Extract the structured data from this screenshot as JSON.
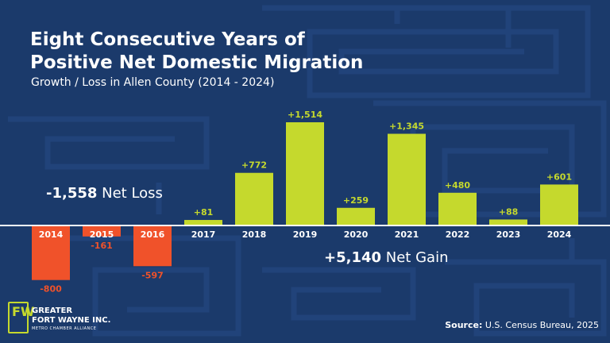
{
  "title_line1": "Eight Consecutive Years of",
  "title_line2": "Positive Net Domestic Migration",
  "subtitle": "Growth / Loss in Allen County (2014 - 2024)",
  "loss_note": {
    "value": "-1,558",
    "label": "Net Loss"
  },
  "gain_note": {
    "value": "+5,140",
    "label": "Net Gain"
  },
  "logo": {
    "line1": "GREATER",
    "line2": "FORT WAYNE INC.",
    "line3": "METRO CHAMBER ALLIANCE",
    "mark": "FW"
  },
  "source": {
    "label": "Source:",
    "text": "U.S. Census Bureau, 2025"
  },
  "colors": {
    "background": "#1b3a6b",
    "positive": "#c5d92d",
    "negative": "#f0522a",
    "baseline": "#ffffff"
  },
  "chart_data": {
    "type": "bar",
    "title": "Eight Consecutive Years of Positive Net Domestic Migration",
    "subtitle": "Growth / Loss in Allen County (2014 - 2024)",
    "xlabel": "",
    "ylabel": "",
    "categories": [
      "2014",
      "2015",
      "2016",
      "2017",
      "2018",
      "2019",
      "2020",
      "2021",
      "2022",
      "2023",
      "2024"
    ],
    "values": [
      -800,
      -161,
      -597,
      81,
      772,
      1514,
      259,
      1345,
      480,
      88,
      601
    ],
    "value_labels": [
      "-800",
      "-161",
      "-597",
      "+81",
      "+772",
      "+1,514",
      "+259",
      "+1,345",
      "+480",
      "+88",
      "+601"
    ],
    "ylim": [
      -800,
      1514
    ],
    "grid": false,
    "legend": "none"
  }
}
